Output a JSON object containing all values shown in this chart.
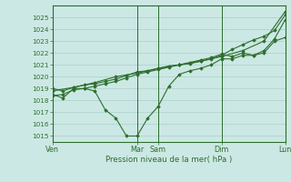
{
  "xlabel": "Pression niveau de la mer( hPa )",
  "bg_color": "#cce8e4",
  "grid_color": "#aacfc9",
  "line_color": "#2d6e2d",
  "ylim": [
    1014.5,
    1026.0
  ],
  "xlim": [
    0,
    11.0
  ],
  "day_labels": [
    "Ven",
    "Mar",
    "Sam",
    "Dim",
    "Lun"
  ],
  "day_positions": [
    0,
    4,
    5,
    8,
    11
  ],
  "yticks": [
    1015,
    1016,
    1017,
    1018,
    1019,
    1020,
    1021,
    1022,
    1023,
    1024,
    1025
  ],
  "s1_x": [
    0,
    0.5,
    1.0,
    1.5,
    2.0,
    2.5,
    3.0,
    3.5,
    4.0,
    4.5,
    5.0,
    5.5,
    6.0,
    6.5,
    7.0,
    7.5,
    8.0,
    8.5,
    9.0,
    9.5,
    10.0,
    10.5,
    11.0
  ],
  "s1_y": [
    1018.5,
    1018.2,
    1019.0,
    1019.0,
    1018.8,
    1017.2,
    1016.5,
    1015.0,
    1015.0,
    1016.5,
    1017.5,
    1019.2,
    1020.2,
    1020.5,
    1020.7,
    1021.0,
    1021.5,
    1021.5,
    1021.8,
    1021.8,
    1022.0,
    1023.0,
    1023.3
  ],
  "s2_x": [
    0,
    1.0,
    2.0,
    3.0,
    4.0,
    5.0,
    6.0,
    7.0,
    8.0,
    9.0,
    10.0,
    11.0
  ],
  "s2_y": [
    1018.8,
    1019.1,
    1019.5,
    1020.0,
    1020.3,
    1020.7,
    1021.0,
    1021.3,
    1021.7,
    1022.2,
    1023.0,
    1025.5
  ],
  "s3_x": [
    0,
    0.5,
    1.0,
    1.5,
    2.0,
    2.5,
    3.0,
    3.5,
    4.0,
    4.5,
    5.0,
    5.5,
    6.0,
    6.5,
    7.0,
    7.5,
    8.0,
    8.5,
    9.0,
    9.5,
    10.0,
    10.5,
    11.0
  ],
  "s3_y": [
    1018.4,
    1018.5,
    1018.9,
    1019.0,
    1019.2,
    1019.4,
    1019.6,
    1019.9,
    1020.2,
    1020.4,
    1020.6,
    1020.8,
    1021.0,
    1021.1,
    1021.3,
    1021.5,
    1021.8,
    1022.3,
    1022.7,
    1023.1,
    1023.4,
    1023.9,
    1025.2
  ],
  "s4_x": [
    0,
    0.5,
    1.0,
    1.5,
    2.0,
    2.5,
    3.0,
    3.5,
    4.0,
    4.5,
    5.0,
    5.5,
    6.0,
    6.5,
    7.0,
    7.5,
    8.0,
    8.5,
    9.0,
    9.5,
    10.0,
    10.5,
    11.0
  ],
  "s4_y": [
    1019.0,
    1018.8,
    1019.1,
    1019.3,
    1019.4,
    1019.6,
    1019.8,
    1020.1,
    1020.4,
    1020.5,
    1020.7,
    1020.9,
    1021.0,
    1021.2,
    1021.4,
    1021.6,
    1021.9,
    1021.7,
    1022.0,
    1021.8,
    1022.2,
    1023.2,
    1024.8
  ]
}
